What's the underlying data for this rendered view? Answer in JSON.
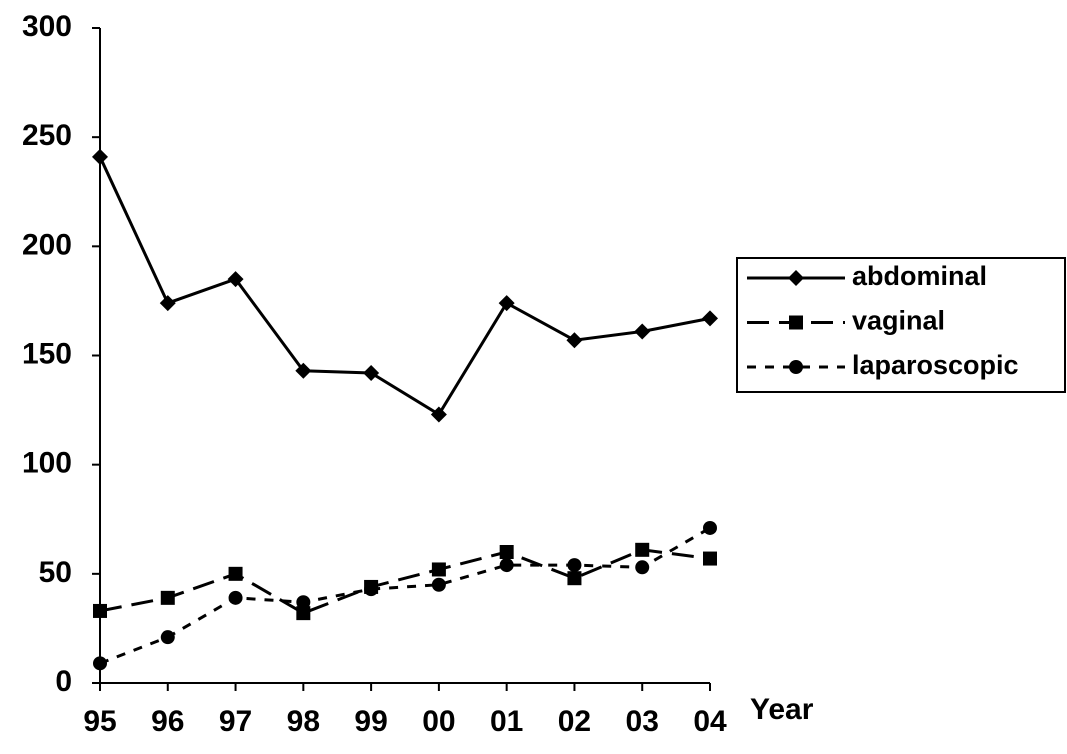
{
  "chart_data": {
    "type": "line",
    "categories": [
      "95",
      "96",
      "97",
      "98",
      "99",
      "00",
      "01",
      "02",
      "03",
      "04"
    ],
    "x_label": "Year",
    "ylim": [
      0,
      300
    ],
    "yticks": [
      0,
      50,
      100,
      150,
      200,
      250,
      300
    ],
    "grid": false,
    "legend": "right",
    "series": [
      {
        "name": "abdominal",
        "color": "#000000",
        "line_style": "solid",
        "marker": "diamond",
        "values": [
          241,
          174,
          185,
          143,
          142,
          123,
          174,
          157,
          161,
          167
        ]
      },
      {
        "name": "vaginal",
        "color": "#000000",
        "line_style": "dashed",
        "marker": "square",
        "values": [
          33,
          39,
          50,
          32,
          44,
          52,
          60,
          48,
          61,
          57
        ]
      },
      {
        "name": "laparoscopic",
        "color": "#000000",
        "line_style": "dotted",
        "marker": "circle",
        "values": [
          9,
          21,
          39,
          37,
          43,
          45,
          54,
          54,
          53,
          71
        ]
      }
    ]
  }
}
